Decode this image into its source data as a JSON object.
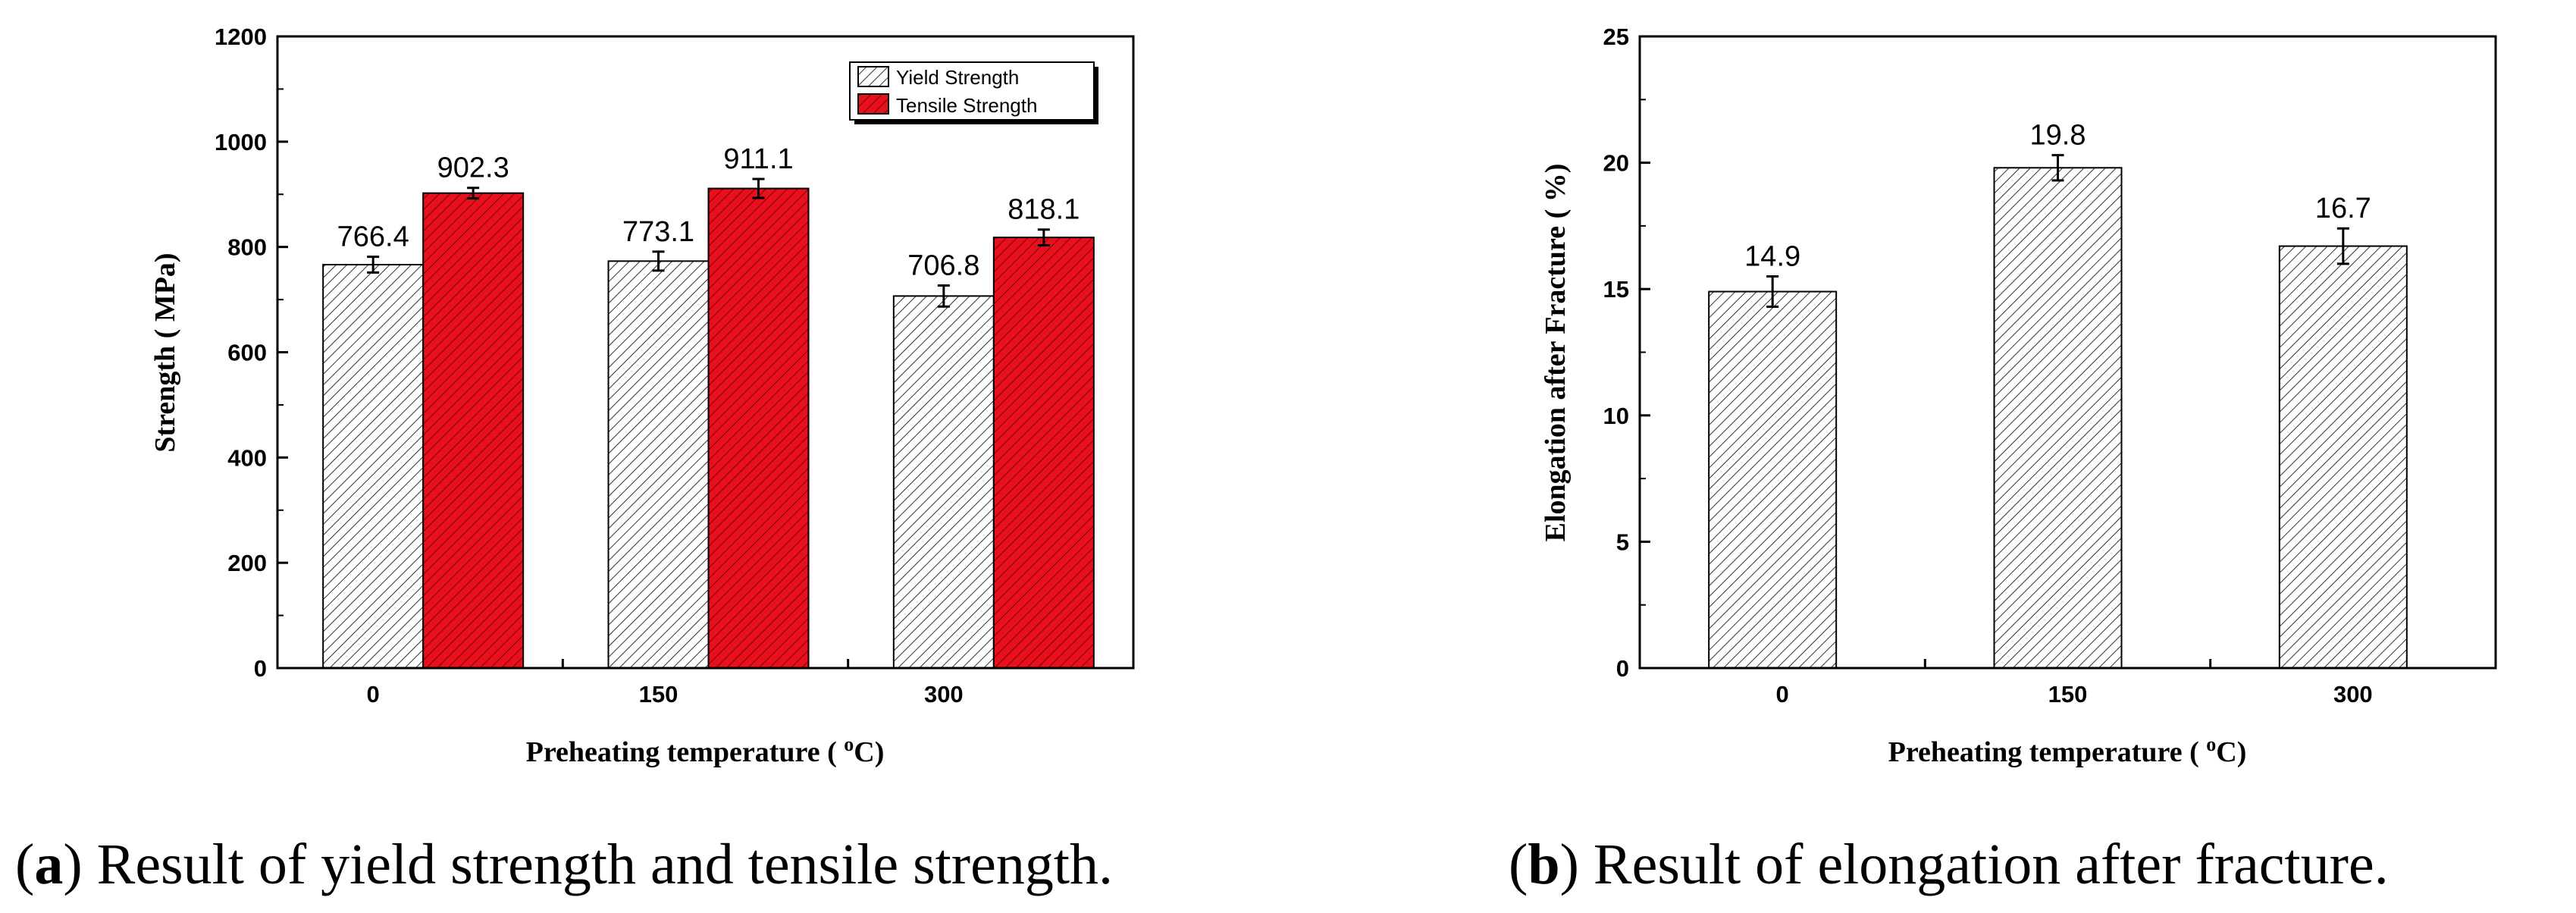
{
  "chart_data": [
    {
      "type": "bar",
      "categories": [
        "0",
        "150",
        "300"
      ],
      "series": [
        {
          "name": "Yield Strength",
          "values": [
            766.4,
            773.1,
            706.8
          ],
          "errors": [
            15,
            18,
            20
          ],
          "labels": [
            "766.4",
            "773.1",
            "706.8"
          ],
          "fill": "hatch",
          "color": "#ffffff"
        },
        {
          "name": "Tensile Strength",
          "values": [
            902.3,
            911.1,
            818.1
          ],
          "errors": [
            10,
            18,
            15
          ],
          "labels": [
            "902.3",
            "911.1",
            "818.1"
          ],
          "fill": "hatch",
          "color": "#e8101c"
        }
      ],
      "title": "",
      "xlabel": "Preheating temperature ( °C)",
      "ylabel": "Strength ( MPa)",
      "ylim": [
        0,
        1200
      ],
      "yticks": [
        "0",
        "200",
        "400",
        "600",
        "800",
        "1000",
        "1200"
      ],
      "legend": "top-right",
      "caption_letter": "a",
      "caption_text": "Result of yield strength and tensile strength."
    },
    {
      "type": "bar",
      "categories": [
        "0",
        "150",
        "300"
      ],
      "series": [
        {
          "name": "Elongation after Fracture",
          "values": [
            14.9,
            19.8,
            16.7
          ],
          "errors": [
            0.6,
            0.5,
            0.7
          ],
          "labels": [
            "14.9",
            "19.8",
            "16.7"
          ],
          "fill": "hatch",
          "color": "#ffffff"
        }
      ],
      "title": "",
      "xlabel": "Preheating temperature ( °C)",
      "ylabel": "Elongation after Fracture ( %)",
      "ylim": [
        0,
        25
      ],
      "yticks": [
        "0",
        "5",
        "10",
        "15",
        "20",
        "25"
      ],
      "caption_letter": "b",
      "caption_text": "Result of elongation after fracture."
    }
  ],
  "colors": {
    "tensile": "#e8101c",
    "yield": "#ffffff",
    "axis": "#000000"
  }
}
